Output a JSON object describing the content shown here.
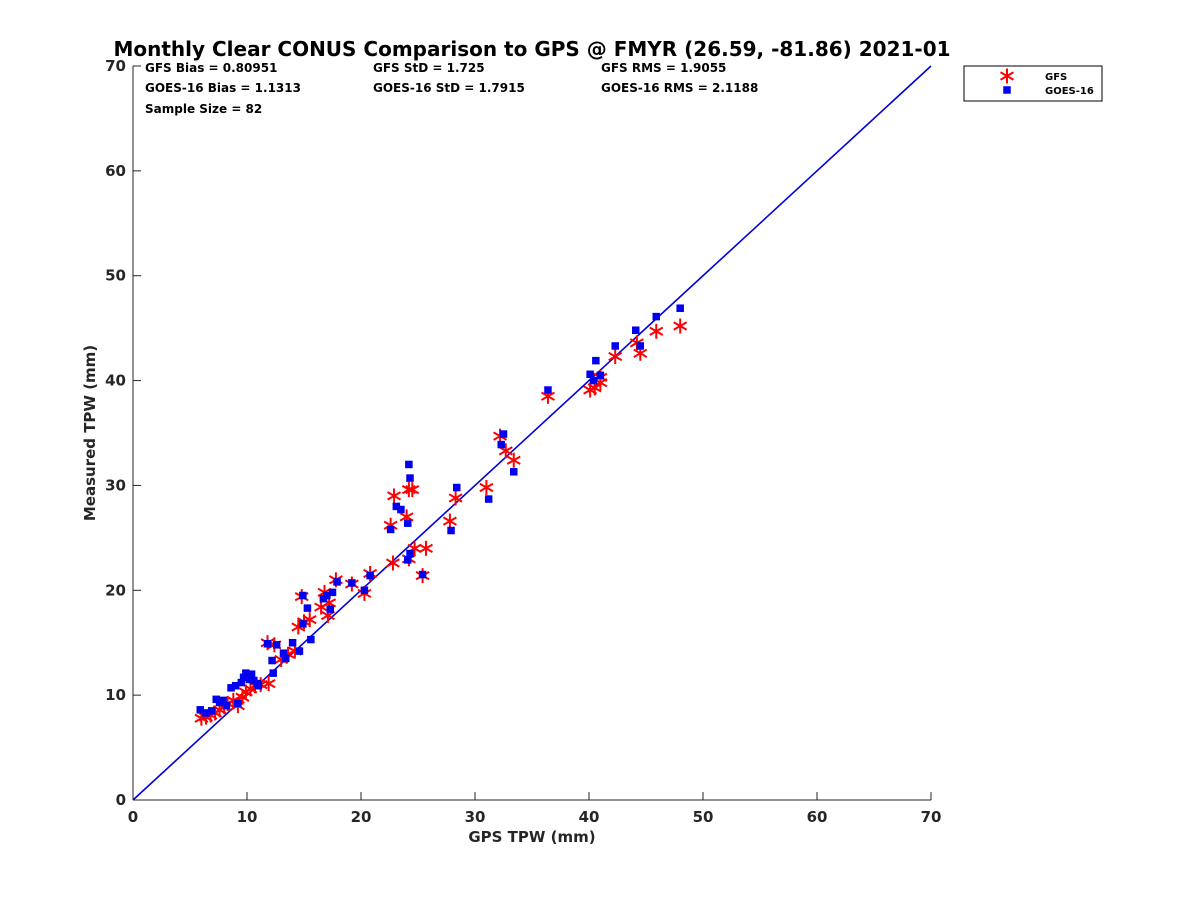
{
  "chart_data": {
    "type": "scatter",
    "title": "Monthly Clear CONUS Comparison to GPS @ FMYR (26.59, -81.86) 2021-01",
    "xlabel": "GPS TPW (mm)",
    "ylabel": "Measured TPW (mm)",
    "xlim": [
      0,
      70
    ],
    "ylim": [
      0,
      70
    ],
    "xticks": [
      "0",
      "10",
      "20",
      "30",
      "40",
      "50",
      "60",
      "70"
    ],
    "yticks": [
      "0",
      "10",
      "20",
      "30",
      "40",
      "50",
      "60",
      "70"
    ],
    "grid": false,
    "legend_position": "outside-top-right",
    "stats": [
      [
        "GFS Bias = 0.80951",
        "GFS StD = 1.725",
        "GFS RMS = 1.9055"
      ],
      [
        "GOES-16 Bias = 1.1313",
        "GOES-16 StD = 1.7915",
        "GOES-16 RMS = 2.1188"
      ],
      [
        "Sample Size = 82",
        "",
        ""
      ]
    ],
    "reference_line": {
      "from": [
        0,
        0
      ],
      "to": [
        70,
        70
      ],
      "color": "#0000dd"
    },
    "series": [
      {
        "name": "GFS",
        "marker": "asterisk",
        "color": "#ff0000",
        "points": [
          [
            6.0,
            7.8
          ],
          [
            6.4,
            7.9
          ],
          [
            6.8,
            8.1
          ],
          [
            7.2,
            8.3
          ],
          [
            7.6,
            8.6
          ],
          [
            8.0,
            8.9
          ],
          [
            8.3,
            9.2
          ],
          [
            8.8,
            9.5
          ],
          [
            9.2,
            9.0
          ],
          [
            9.6,
            9.8
          ],
          [
            9.9,
            10.3
          ],
          [
            10.3,
            10.6
          ],
          [
            10.7,
            10.9
          ],
          [
            11.2,
            11.0
          ],
          [
            11.9,
            11.1
          ],
          [
            11.8,
            15.0
          ],
          [
            12.4,
            14.8
          ],
          [
            13.0,
            13.4
          ],
          [
            13.6,
            13.9
          ],
          [
            14.2,
            14.2
          ],
          [
            14.5,
            16.5
          ],
          [
            14.8,
            19.4
          ],
          [
            15.0,
            17.0
          ],
          [
            15.5,
            17.2
          ],
          [
            16.5,
            18.4
          ],
          [
            16.8,
            19.8
          ],
          [
            17.2,
            18.8
          ],
          [
            17.1,
            17.6
          ],
          [
            17.8,
            21.0
          ],
          [
            19.2,
            20.6
          ],
          [
            20.3,
            19.7
          ],
          [
            20.8,
            21.6
          ],
          [
            22.6,
            26.2
          ],
          [
            22.9,
            29.0
          ],
          [
            22.8,
            22.6
          ],
          [
            24.0,
            27.0
          ],
          [
            24.2,
            29.6
          ],
          [
            24.5,
            29.6
          ],
          [
            24.2,
            23.0
          ],
          [
            24.7,
            24.0
          ],
          [
            25.4,
            21.4
          ],
          [
            25.7,
            24.0
          ],
          [
            27.8,
            26.6
          ],
          [
            28.3,
            28.8
          ],
          [
            31.0,
            29.8
          ],
          [
            32.2,
            34.7
          ],
          [
            32.7,
            33.3
          ],
          [
            33.4,
            32.4
          ],
          [
            36.4,
            38.5
          ],
          [
            40.1,
            39.1
          ],
          [
            40.5,
            39.3
          ],
          [
            41.0,
            39.8
          ],
          [
            41.0,
            40.3
          ],
          [
            42.3,
            42.3
          ],
          [
            44.2,
            43.6
          ],
          [
            44.5,
            42.6
          ],
          [
            45.9,
            44.7
          ],
          [
            48.0,
            45.2
          ]
        ]
      },
      {
        "name": "GOES-16",
        "marker": "square",
        "color": "#0000ee",
        "points": [
          [
            5.9,
            8.6
          ],
          [
            6.4,
            8.3
          ],
          [
            6.9,
            8.5
          ],
          [
            7.3,
            9.6
          ],
          [
            7.6,
            9.3
          ],
          [
            7.9,
            9.5
          ],
          [
            8.2,
            9.0
          ],
          [
            8.6,
            10.7
          ],
          [
            9.0,
            10.9
          ],
          [
            9.2,
            9.2
          ],
          [
            9.5,
            11.2
          ],
          [
            9.7,
            11.7
          ],
          [
            9.9,
            12.1
          ],
          [
            10.2,
            11.5
          ],
          [
            10.4,
            12.0
          ],
          [
            10.6,
            11.4
          ],
          [
            10.9,
            11.1
          ],
          [
            11.0,
            10.9
          ],
          [
            11.8,
            14.9
          ],
          [
            12.3,
            12.1
          ],
          [
            12.2,
            13.3
          ],
          [
            12.6,
            14.8
          ],
          [
            13.2,
            14.0
          ],
          [
            13.4,
            13.5
          ],
          [
            14.0,
            15.0
          ],
          [
            14.6,
            14.2
          ],
          [
            14.9,
            19.5
          ],
          [
            14.9,
            16.8
          ],
          [
            15.3,
            18.3
          ],
          [
            15.6,
            15.3
          ],
          [
            16.7,
            19.2
          ],
          [
            17.0,
            19.5
          ],
          [
            17.5,
            19.8
          ],
          [
            17.3,
            18.2
          ],
          [
            17.9,
            20.8
          ],
          [
            19.2,
            20.7
          ],
          [
            20.3,
            20.0
          ],
          [
            20.8,
            21.4
          ],
          [
            22.6,
            25.8
          ],
          [
            23.1,
            28.0
          ],
          [
            23.5,
            27.7
          ],
          [
            24.1,
            26.4
          ],
          [
            24.2,
            32.0
          ],
          [
            24.3,
            30.7
          ],
          [
            24.1,
            22.9
          ],
          [
            24.3,
            23.5
          ],
          [
            25.4,
            21.5
          ],
          [
            27.9,
            25.7
          ],
          [
            28.4,
            29.8
          ],
          [
            31.2,
            28.7
          ],
          [
            32.3,
            33.9
          ],
          [
            32.5,
            34.9
          ],
          [
            33.4,
            31.3
          ],
          [
            36.4,
            39.1
          ],
          [
            40.1,
            40.6
          ],
          [
            40.4,
            40.0
          ],
          [
            40.6,
            41.9
          ],
          [
            41.0,
            40.5
          ],
          [
            42.3,
            43.3
          ],
          [
            44.1,
            44.8
          ],
          [
            44.5,
            43.3
          ],
          [
            45.9,
            46.1
          ],
          [
            48.0,
            46.9
          ]
        ]
      }
    ]
  }
}
